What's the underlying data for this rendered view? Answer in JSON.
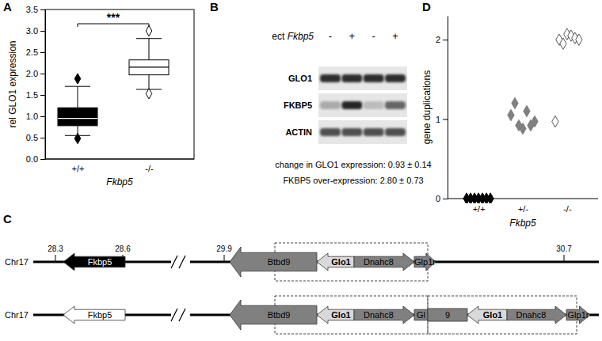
{
  "chart_data": [
    {
      "type": "box",
      "panel": "A",
      "annotation": "***",
      "categories": [
        "+/+",
        "-/-"
      ],
      "x_label": "Fkbp5",
      "y_label": "rel GLO1 expression",
      "ylim": [
        0,
        3.5
      ],
      "yticks": [
        {
          "value": 0,
          "label": "0.0"
        },
        {
          "value": 0.5,
          "label": "0.5"
        },
        {
          "value": 1,
          "label": "1.0"
        },
        {
          "value": 1.5,
          "label": "1.5"
        },
        {
          "value": 2,
          "label": "2.0"
        },
        {
          "value": 2.5,
          "label": "2.5"
        },
        {
          "value": 3,
          "label": "3.0"
        },
        {
          "value": 3.5,
          "label": "3.5"
        }
      ],
      "colors": [
        "#000000",
        "#ffffff"
      ],
      "marker": "diamond",
      "boxes": [
        {
          "whisker_low": 0.55,
          "q1": 0.78,
          "median": 0.95,
          "q3": 1.2,
          "whisker_high": 1.7,
          "outliers": [
            0.48,
            1.88
          ]
        },
        {
          "whisker_low": 1.63,
          "q1": 1.97,
          "median": 2.15,
          "q3": 2.32,
          "whisker_high": 2.82,
          "outliers": [
            1.53,
            3.0
          ]
        }
      ]
    },
    {
      "type": "scatter",
      "panel": "D",
      "categories": [
        "+/+",
        "+/-",
        "-/-"
      ],
      "x_label": "Fkbp5",
      "y_label": "gene duplications",
      "ylim": [
        0,
        2.3
      ],
      "yticks": [
        0,
        1,
        2
      ],
      "marker": "diamond",
      "groups": [
        {
          "color": "#000000",
          "values": [
            0,
            0,
            0,
            0,
            0,
            0,
            0
          ]
        },
        {
          "color": "#808080",
          "values": [
            1.05,
            1.2,
            0.92,
            0.88,
            1.1,
            0.92,
            0.97
          ]
        },
        {
          "color": "#ffffff",
          "values": [
            0.97,
            2.0,
            1.95,
            2.07,
            2.05,
            2.02,
            2.0
          ]
        }
      ]
    }
  ],
  "blot": {
    "panel": "B",
    "header": {
      "label": "ect",
      "gene": "Fkbp5"
    },
    "lanes": [
      "-",
      "+",
      "-",
      "+"
    ],
    "rows": [
      "GLO1",
      "FKBP5",
      "ACTIN"
    ],
    "notes": [
      "change in GLO1 expression: 0.93 ± 0.14",
      "FKBP5 over-expression: 2.80 ± 0.73"
    ]
  },
  "gene_map": {
    "panel": "C",
    "positions": [
      28.3,
      28.6,
      29.9,
      30.7
    ],
    "rows": [
      {
        "chromosome": "Chr17",
        "genes": [
          {
            "label": "Fkbp5",
            "direction": "left",
            "color": "#000000"
          },
          {
            "label": "Btbd9",
            "direction": "left",
            "color": "#808080"
          },
          {
            "label": "Glo1",
            "direction": "left",
            "color": "#d9d9d9"
          },
          {
            "label": "Dnahc8",
            "direction": "right",
            "color": "#808080"
          },
          {
            "label": "Glp1r",
            "direction": "right",
            "color": "#808080"
          }
        ]
      },
      {
        "chromosome": "Chr17",
        "genes": [
          {
            "label": "Fkbp5",
            "direction": "left",
            "color": "#ffffff"
          },
          {
            "label": "Btbd9",
            "direction": "left",
            "color": "#808080"
          },
          {
            "label": "Glo1",
            "direction": "left",
            "color": "#d9d9d9"
          },
          {
            "label": "Dnahc8",
            "direction": "right",
            "color": "#808080"
          },
          {
            "label": "Gl",
            "direction": "none",
            "color": "#808080"
          },
          {
            "label": "9",
            "direction": "none",
            "color": "#808080"
          },
          {
            "label": "Glo1",
            "direction": "left",
            "color": "#d9d9d9"
          },
          {
            "label": "Dnahc8",
            "direction": "right",
            "color": "#808080"
          },
          {
            "label": "Glp1r",
            "direction": "right",
            "color": "#808080"
          }
        ]
      }
    ]
  }
}
